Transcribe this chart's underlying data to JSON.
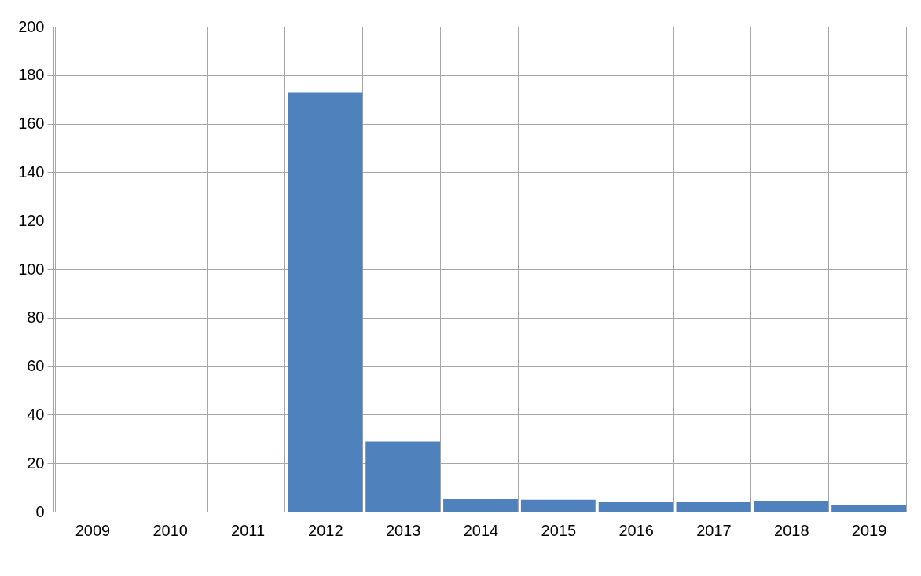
{
  "chart_data": {
    "type": "bar",
    "categories": [
      "2009",
      "2010",
      "2011",
      "2012",
      "2013",
      "2014",
      "2015",
      "2016",
      "2017",
      "2018",
      "2019"
    ],
    "values": [
      null,
      null,
      null,
      173,
      29,
      5.2,
      4.9,
      3.9,
      3.9,
      4.2,
      2.6
    ],
    "color": "#4f81bd",
    "ylim": [
      0,
      200
    ],
    "yticks": [
      0,
      20,
      40,
      60,
      80,
      100,
      120,
      140,
      160,
      180,
      200
    ],
    "grid": true
  }
}
